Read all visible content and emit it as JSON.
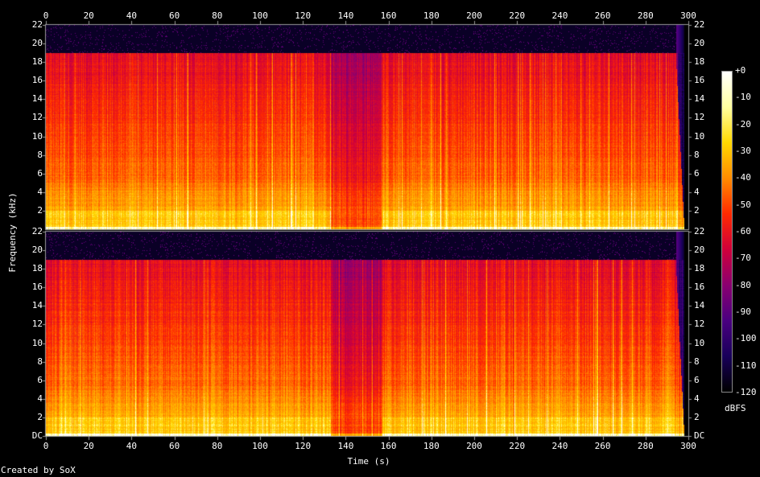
{
  "chart_data": {
    "type": "heatmap",
    "title": "",
    "xlabel": "Time (s)",
    "ylabel": "Frequency (kHz)",
    "xlim": [
      0,
      300
    ],
    "ylim": [
      0,
      22
    ],
    "x_ticks": [
      "0",
      "20",
      "40",
      "60",
      "80",
      "100",
      "120",
      "140",
      "160",
      "180",
      "200",
      "220",
      "240",
      "260",
      "280",
      "300"
    ],
    "y_ticks_upper": [
      "22",
      "20",
      "18",
      "16",
      "14",
      "12",
      "10",
      "8",
      "6",
      "4",
      "2"
    ],
    "y_ticks_lower": [
      "22",
      "20",
      "18",
      "16",
      "14",
      "12",
      "10",
      "8",
      "6",
      "4",
      "2",
      "DC"
    ],
    "channels": 2,
    "colorbar": {
      "label": "dBFS",
      "range": [
        -120,
        0
      ],
      "ticks": [
        "+0",
        "-10",
        "-20",
        "-30",
        "-40",
        "-50",
        "-60",
        "-70",
        "-80",
        "-90",
        "-100",
        "-110",
        "-120"
      ],
      "colors": [
        "#ffffff",
        "#ffffa0",
        "#ffd700",
        "#ff8c00",
        "#ff2a00",
        "#d0003a",
        "#8a0070",
        "#4a0080",
        "#18005a",
        "#000000"
      ]
    },
    "features": {
      "lowpass_cutoff_khz": 19,
      "quiet_section_s": [
        133,
        157
      ],
      "fadeout_start_s": 294,
      "end_s": 298
    }
  },
  "footer": {
    "credit": "Created by SoX"
  }
}
